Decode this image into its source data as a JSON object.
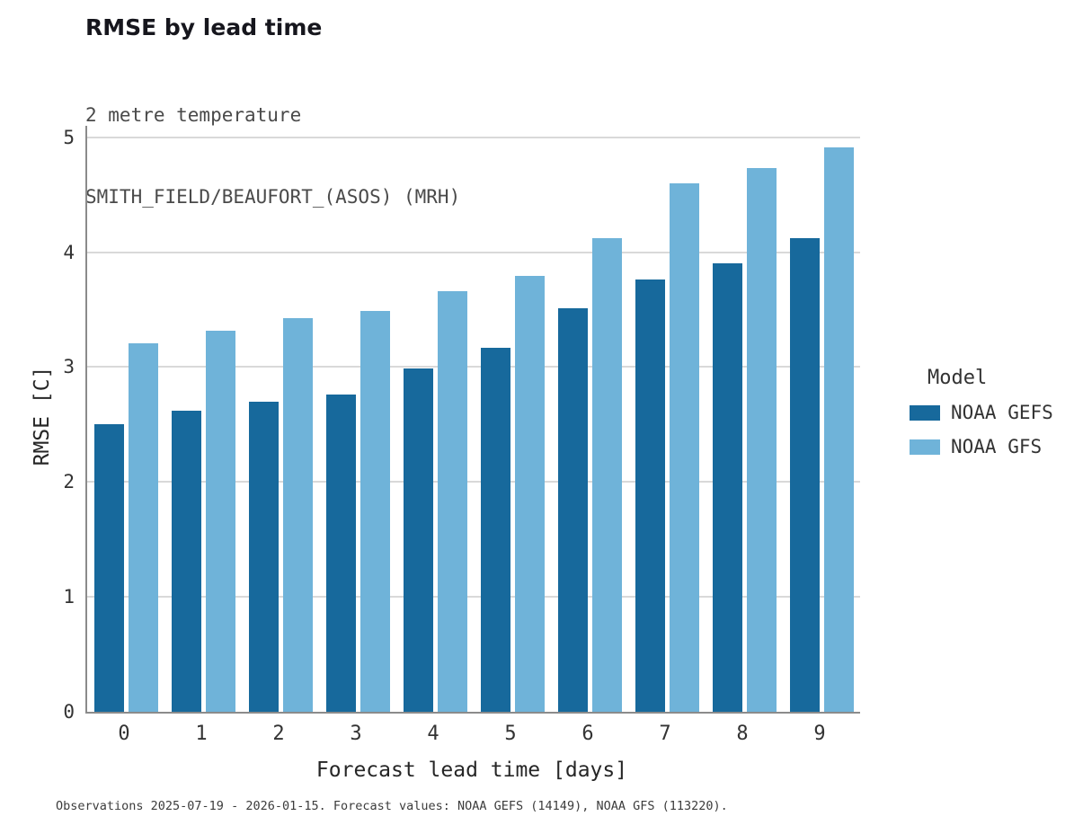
{
  "chart_data": {
    "type": "bar",
    "title": "RMSE by lead time",
    "subtitle_line1": "2 metre temperature",
    "subtitle_line2": "SMITH_FIELD/BEAUFORT_(ASOS) (MRH)",
    "xlabel": "Forecast lead time [days]",
    "ylabel": "RMSE [C]",
    "categories": [
      "0",
      "1",
      "2",
      "3",
      "4",
      "5",
      "6",
      "7",
      "8",
      "9"
    ],
    "series": [
      {
        "name": "NOAA GEFS",
        "color": "#17699c",
        "values": [
          2.5,
          2.62,
          2.7,
          2.76,
          2.99,
          3.17,
          3.51,
          3.76,
          3.9,
          4.12
        ]
      },
      {
        "name": "NOAA GFS",
        "color": "#6fb3d9",
        "values": [
          3.21,
          3.32,
          3.43,
          3.49,
          3.66,
          3.79,
          4.12,
          4.6,
          4.73,
          4.91
        ]
      }
    ],
    "ylim": [
      0,
      5.1
    ],
    "yticks": [
      0,
      1,
      2,
      3,
      4,
      5
    ],
    "grid": "horizontal",
    "legend_title": "Model",
    "legend_position": "right",
    "caption": "Observations 2025-07-19 - 2026-01-15. Forecast values: NOAA GEFS (14149), NOAA GFS (113220)."
  }
}
